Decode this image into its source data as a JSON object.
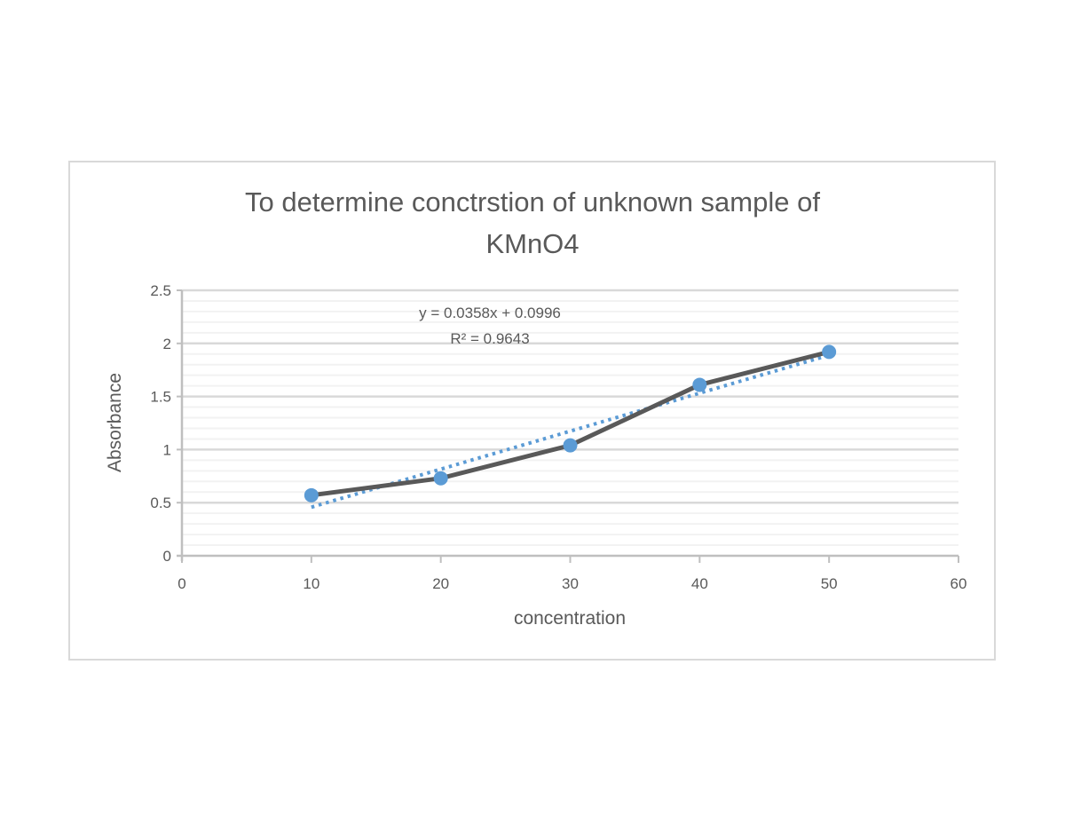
{
  "chart_data": {
    "type": "scatter",
    "title": "To determine conctrstion of unknown sample of KMnO4",
    "title_lines": [
      "To determine conctrstion of unknown sample of",
      "KMnO4"
    ],
    "xlabel": "concentration",
    "ylabel": "Absorbance",
    "xlim": [
      0,
      60
    ],
    "ylim": [
      0,
      2.5
    ],
    "x_ticks": [
      "0",
      "10",
      "20",
      "30",
      "40",
      "50",
      "60"
    ],
    "y_ticks": [
      "0",
      "0.5",
      "1",
      "1.5",
      "2",
      "2.5"
    ],
    "grid": {
      "major": true,
      "minor": true
    },
    "legend": null,
    "series": [
      {
        "name": "Absorbance",
        "mode": "lines+markers",
        "x": [
          10,
          20,
          30,
          40,
          50
        ],
        "y": [
          0.57,
          0.73,
          1.04,
          1.61,
          1.92
        ],
        "line_color": "#595959",
        "marker_color": "#5b9bd5"
      }
    ],
    "trendline": {
      "type": "linear",
      "slope": 0.0358,
      "intercept": 0.0996,
      "r_squared": 0.9643,
      "x_range": [
        10,
        50
      ],
      "style": "dotted",
      "color": "#5b9bd5",
      "equation_label": "y = 0.0358x + 0.0996",
      "r2_label": "R² = 0.9643"
    }
  }
}
